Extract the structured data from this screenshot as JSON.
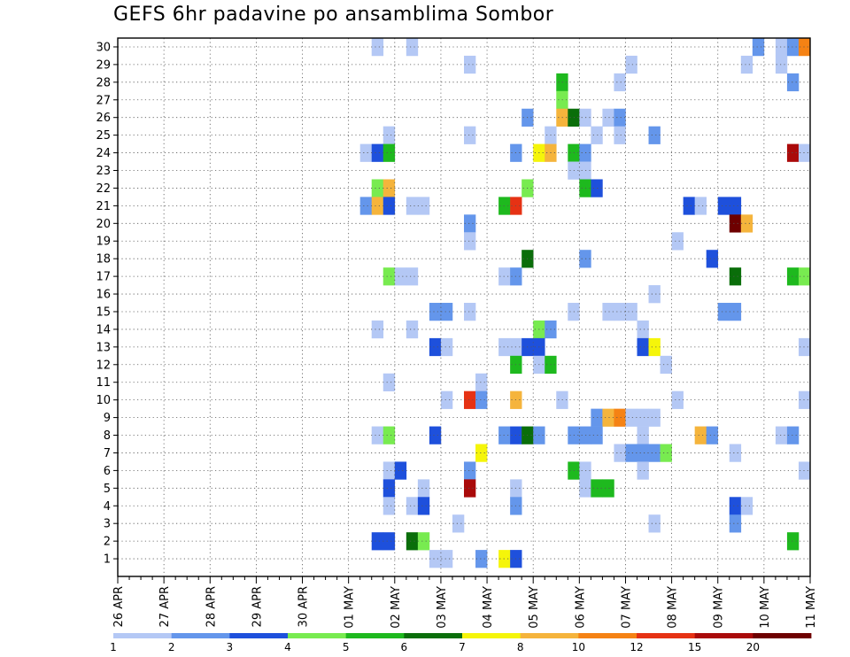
{
  "chart_data": {
    "type": "heatmap",
    "title": "GEFS 6hr padavine po ansamblima Sombor",
    "xlabel": "",
    "ylabel": "",
    "x_tick_labels": [
      "26 APR",
      "27 APR",
      "28 APR",
      "29 APR",
      "30 APR",
      "01 MAY",
      "02 MAY",
      "03 MAY",
      "04 MAY",
      "05 MAY",
      "06 MAY",
      "07 MAY",
      "08 MAY",
      "09 MAY",
      "10 MAY",
      "11 MAY"
    ],
    "y_tick_labels": [
      "1",
      "2",
      "3",
      "4",
      "5",
      "6",
      "7",
      "8",
      "9",
      "10",
      "11",
      "12",
      "13",
      "14",
      "15",
      "16",
      "17",
      "18",
      "19",
      "20",
      "21",
      "22",
      "23",
      "24",
      "25",
      "26",
      "27",
      "28",
      "29",
      "30"
    ],
    "time_step_hours": 6,
    "grid": true,
    "legend": {
      "position": "bottom",
      "thresholds": [
        "1",
        "2",
        "3",
        "4",
        "5",
        "6",
        "7",
        "8",
        "10",
        "12",
        "15",
        "20"
      ],
      "colors": [
        "#b4c8f5",
        "#6496eb",
        "#1e50dc",
        "#78eb50",
        "#1eb91e",
        "#0a6e0a",
        "#f5f50a",
        "#f5b43c",
        "#f58214",
        "#e63214",
        "#aa0a0a",
        "#6e0000"
      ]
    },
    "cells": [
      {
        "m": 30,
        "t": 23,
        "v": 1
      },
      {
        "m": 30,
        "t": 26,
        "v": 1
      },
      {
        "m": 30,
        "t": 56,
        "v": 2
      },
      {
        "m": 30,
        "t": 58,
        "v": 1
      },
      {
        "m": 30,
        "t": 59,
        "v": 2
      },
      {
        "m": 30,
        "t": 60,
        "v": 11
      },
      {
        "m": 29,
        "t": 31,
        "v": 1
      },
      {
        "m": 29,
        "t": 45,
        "v": 1
      },
      {
        "m": 29,
        "t": 55,
        "v": 1
      },
      {
        "m": 29,
        "t": 58,
        "v": 1
      },
      {
        "m": 28,
        "t": 39,
        "v": 5
      },
      {
        "m": 28,
        "t": 44,
        "v": 1
      },
      {
        "m": 28,
        "t": 59,
        "v": 2
      },
      {
        "m": 27,
        "t": 39,
        "v": 4
      },
      {
        "m": 26,
        "t": 36,
        "v": 2
      },
      {
        "m": 26,
        "t": 39,
        "v": 8
      },
      {
        "m": 26,
        "t": 40,
        "v": 6
      },
      {
        "m": 26,
        "t": 41,
        "v": 1
      },
      {
        "m": 26,
        "t": 43,
        "v": 1
      },
      {
        "m": 26,
        "t": 44,
        "v": 2
      },
      {
        "m": 25,
        "t": 24,
        "v": 1
      },
      {
        "m": 25,
        "t": 31,
        "v": 1
      },
      {
        "m": 25,
        "t": 38,
        "v": 1
      },
      {
        "m": 25,
        "t": 42,
        "v": 1
      },
      {
        "m": 25,
        "t": 44,
        "v": 1
      },
      {
        "m": 25,
        "t": 47,
        "v": 2
      },
      {
        "m": 24,
        "t": 22,
        "v": 1
      },
      {
        "m": 24,
        "t": 23,
        "v": 3
      },
      {
        "m": 24,
        "t": 24,
        "v": 5
      },
      {
        "m": 24,
        "t": 35,
        "v": 2
      },
      {
        "m": 24,
        "t": 37,
        "v": 7
      },
      {
        "m": 24,
        "t": 38,
        "v": 9
      },
      {
        "m": 24,
        "t": 40,
        "v": 5
      },
      {
        "m": 24,
        "t": 41,
        "v": 2
      },
      {
        "m": 24,
        "t": 59,
        "v": 15
      },
      {
        "m": 24,
        "t": 60,
        "v": 1
      },
      {
        "m": 23,
        "t": 40,
        "v": 1
      },
      {
        "m": 23,
        "t": 41,
        "v": 1
      },
      {
        "m": 22,
        "t": 23,
        "v": 4
      },
      {
        "m": 22,
        "t": 24,
        "v": 8
      },
      {
        "m": 22,
        "t": 36,
        "v": 4
      },
      {
        "m": 22,
        "t": 41,
        "v": 5
      },
      {
        "m": 22,
        "t": 42,
        "v": 3
      },
      {
        "m": 21,
        "t": 22,
        "v": 2
      },
      {
        "m": 21,
        "t": 23,
        "v": 8
      },
      {
        "m": 21,
        "t": 24,
        "v": 3
      },
      {
        "m": 21,
        "t": 26,
        "v": 1
      },
      {
        "m": 21,
        "t": 27,
        "v": 1
      },
      {
        "m": 21,
        "t": 34,
        "v": 5
      },
      {
        "m": 21,
        "t": 35,
        "v": 12
      },
      {
        "m": 21,
        "t": 50,
        "v": 3
      },
      {
        "m": 21,
        "t": 51,
        "v": 1
      },
      {
        "m": 21,
        "t": 53,
        "v": 3
      },
      {
        "m": 21,
        "t": 54,
        "v": 3
      },
      {
        "m": 20,
        "t": 31,
        "v": 2
      },
      {
        "m": 20,
        "t": 54,
        "v": 20
      },
      {
        "m": 20,
        "t": 55,
        "v": 8
      },
      {
        "m": 19,
        "t": 31,
        "v": 1
      },
      {
        "m": 19,
        "t": 49,
        "v": 1
      },
      {
        "m": 18,
        "t": 36,
        "v": 6
      },
      {
        "m": 18,
        "t": 41,
        "v": 2
      },
      {
        "m": 18,
        "t": 52,
        "v": 3
      },
      {
        "m": 17,
        "t": 24,
        "v": 4
      },
      {
        "m": 17,
        "t": 25,
        "v": 1
      },
      {
        "m": 17,
        "t": 26,
        "v": 1
      },
      {
        "m": 17,
        "t": 34,
        "v": 1
      },
      {
        "m": 17,
        "t": 35,
        "v": 2
      },
      {
        "m": 17,
        "t": 54,
        "v": 6
      },
      {
        "m": 17,
        "t": 59,
        "v": 5
      },
      {
        "m": 17,
        "t": 60,
        "v": 4
      },
      {
        "m": 16,
        "t": 47,
        "v": 1
      },
      {
        "m": 15,
        "t": 28,
        "v": 2
      },
      {
        "m": 15,
        "t": 29,
        "v": 2
      },
      {
        "m": 15,
        "t": 31,
        "v": 1
      },
      {
        "m": 15,
        "t": 40,
        "v": 1
      },
      {
        "m": 15,
        "t": 43,
        "v": 1
      },
      {
        "m": 15,
        "t": 44,
        "v": 1
      },
      {
        "m": 15,
        "t": 45,
        "v": 1
      },
      {
        "m": 15,
        "t": 53,
        "v": 2
      },
      {
        "m": 15,
        "t": 54,
        "v": 2
      },
      {
        "m": 14,
        "t": 23,
        "v": 1
      },
      {
        "m": 14,
        "t": 26,
        "v": 1
      },
      {
        "m": 14,
        "t": 37,
        "v": 4
      },
      {
        "m": 14,
        "t": 38,
        "v": 2
      },
      {
        "m": 14,
        "t": 46,
        "v": 1
      },
      {
        "m": 13,
        "t": 28,
        "v": 3
      },
      {
        "m": 13,
        "t": 29,
        "v": 1
      },
      {
        "m": 13,
        "t": 34,
        "v": 1
      },
      {
        "m": 13,
        "t": 35,
        "v": 1
      },
      {
        "m": 13,
        "t": 36,
        "v": 3
      },
      {
        "m": 13,
        "t": 37,
        "v": 3
      },
      {
        "m": 13,
        "t": 46,
        "v": 3
      },
      {
        "m": 13,
        "t": 47,
        "v": 7
      },
      {
        "m": 13,
        "t": 60,
        "v": 1
      },
      {
        "m": 12,
        "t": 35,
        "v": 5
      },
      {
        "m": 12,
        "t": 37,
        "v": 1
      },
      {
        "m": 12,
        "t": 38,
        "v": 5
      },
      {
        "m": 12,
        "t": 48,
        "v": 1
      },
      {
        "m": 11,
        "t": 24,
        "v": 1
      },
      {
        "m": 11,
        "t": 32,
        "v": 1
      },
      {
        "m": 10,
        "t": 29,
        "v": 1
      },
      {
        "m": 10,
        "t": 31,
        "v": 12
      },
      {
        "m": 10,
        "t": 32,
        "v": 2
      },
      {
        "m": 10,
        "t": 35,
        "v": 8
      },
      {
        "m": 10,
        "t": 39,
        "v": 1
      },
      {
        "m": 10,
        "t": 49,
        "v": 1
      },
      {
        "m": 10,
        "t": 60,
        "v": 1
      },
      {
        "m": 9,
        "t": 42,
        "v": 2
      },
      {
        "m": 9,
        "t": 43,
        "v": 8
      },
      {
        "m": 9,
        "t": 44,
        "v": 10
      },
      {
        "m": 9,
        "t": 45,
        "v": 1
      },
      {
        "m": 9,
        "t": 46,
        "v": 1
      },
      {
        "m": 9,
        "t": 47,
        "v": 1
      },
      {
        "m": 8,
        "t": 23,
        "v": 1
      },
      {
        "m": 8,
        "t": 24,
        "v": 4
      },
      {
        "m": 8,
        "t": 28,
        "v": 3
      },
      {
        "m": 8,
        "t": 34,
        "v": 2
      },
      {
        "m": 8,
        "t": 35,
        "v": 3
      },
      {
        "m": 8,
        "t": 36,
        "v": 6
      },
      {
        "m": 8,
        "t": 37,
        "v": 2
      },
      {
        "m": 8,
        "t": 40,
        "v": 2
      },
      {
        "m": 8,
        "t": 41,
        "v": 2
      },
      {
        "m": 8,
        "t": 42,
        "v": 2
      },
      {
        "m": 8,
        "t": 46,
        "v": 1
      },
      {
        "m": 8,
        "t": 51,
        "v": 8
      },
      {
        "m": 8,
        "t": 52,
        "v": 2
      },
      {
        "m": 8,
        "t": 58,
        "v": 1
      },
      {
        "m": 8,
        "t": 59,
        "v": 2
      },
      {
        "m": 7,
        "t": 32,
        "v": 7
      },
      {
        "m": 7,
        "t": 44,
        "v": 1
      },
      {
        "m": 7,
        "t": 45,
        "v": 2
      },
      {
        "m": 7,
        "t": 46,
        "v": 2
      },
      {
        "m": 7,
        "t": 47,
        "v": 2
      },
      {
        "m": 7,
        "t": 48,
        "v": 4
      },
      {
        "m": 7,
        "t": 54,
        "v": 1
      },
      {
        "m": 6,
        "t": 24,
        "v": 1
      },
      {
        "m": 6,
        "t": 25,
        "v": 3
      },
      {
        "m": 6,
        "t": 31,
        "v": 2
      },
      {
        "m": 6,
        "t": 40,
        "v": 5
      },
      {
        "m": 6,
        "t": 41,
        "v": 1
      },
      {
        "m": 6,
        "t": 46,
        "v": 1
      },
      {
        "m": 6,
        "t": 60,
        "v": 1
      },
      {
        "m": 5,
        "t": 24,
        "v": 3
      },
      {
        "m": 5,
        "t": 27,
        "v": 1
      },
      {
        "m": 5,
        "t": 31,
        "v": 15
      },
      {
        "m": 5,
        "t": 35,
        "v": 1
      },
      {
        "m": 5,
        "t": 41,
        "v": 1
      },
      {
        "m": 5,
        "t": 42,
        "v": 5
      },
      {
        "m": 5,
        "t": 43,
        "v": 5
      },
      {
        "m": 4,
        "t": 24,
        "v": 1
      },
      {
        "m": 4,
        "t": 26,
        "v": 1
      },
      {
        "m": 4,
        "t": 27,
        "v": 3
      },
      {
        "m": 4,
        "t": 35,
        "v": 2
      },
      {
        "m": 4,
        "t": 54,
        "v": 3
      },
      {
        "m": 4,
        "t": 55,
        "v": 1
      },
      {
        "m": 3,
        "t": 30,
        "v": 1
      },
      {
        "m": 3,
        "t": 47,
        "v": 1
      },
      {
        "m": 3,
        "t": 54,
        "v": 2
      },
      {
        "m": 2,
        "t": 23,
        "v": 3
      },
      {
        "m": 2,
        "t": 24,
        "v": 3
      },
      {
        "m": 2,
        "t": 26,
        "v": 6
      },
      {
        "m": 2,
        "t": 27,
        "v": 4
      },
      {
        "m": 2,
        "t": 59,
        "v": 5
      },
      {
        "m": 1,
        "t": 28,
        "v": 1
      },
      {
        "m": 1,
        "t": 29,
        "v": 1
      },
      {
        "m": 1,
        "t": 32,
        "v": 2
      },
      {
        "m": 1,
        "t": 34,
        "v": 7
      },
      {
        "m": 1,
        "t": 35,
        "v": 3
      }
    ]
  }
}
